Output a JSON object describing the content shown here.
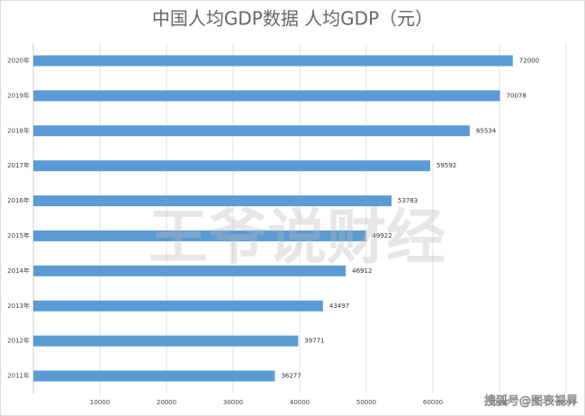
{
  "chart_data": {
    "type": "bar",
    "orientation": "horizontal",
    "title": "中国人均GDP数据 人均GDP（元）",
    "categories": [
      "2020年",
      "2019年",
      "2018年",
      "2017年",
      "2016年",
      "2015年",
      "2014年",
      "2013年",
      "2012年",
      "2011年"
    ],
    "values": [
      72000,
      70078,
      65534,
      59592,
      53783,
      49922,
      46912,
      43497,
      39771,
      36277
    ],
    "color": "#5b9bd5",
    "xlim": [
      0,
      80000
    ],
    "xticks": [
      10000,
      20000,
      30000,
      40000,
      50000,
      60000,
      70000,
      80000
    ],
    "grid": true,
    "watermarks": [
      "王爷说财经",
      "搜狐号@图表视界"
    ]
  }
}
